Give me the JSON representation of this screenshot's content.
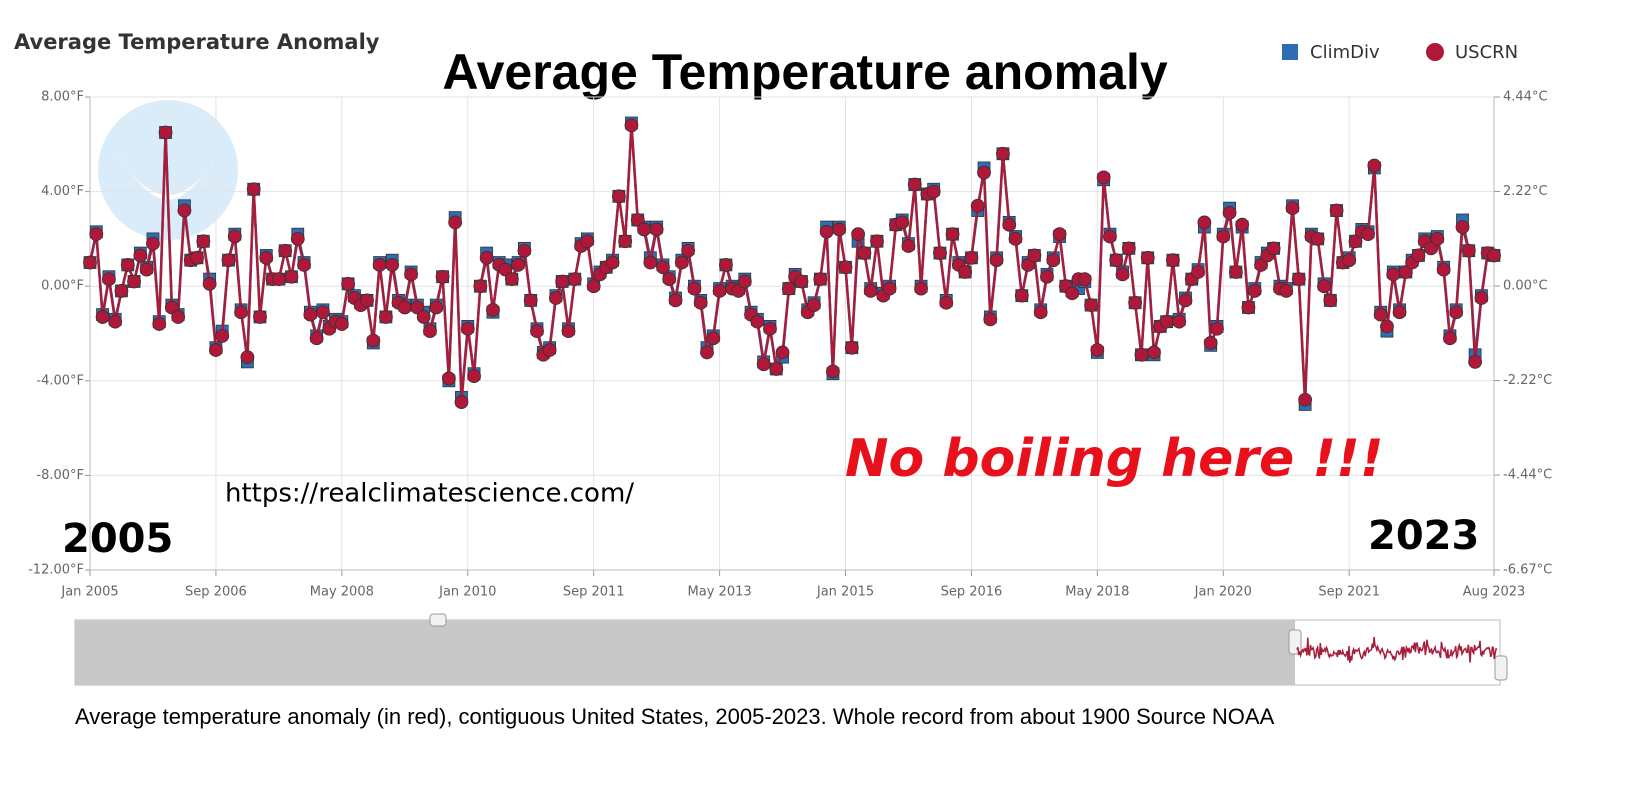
{
  "chart_data": {
    "type": "line",
    "title": "Average Temperature Anomaly",
    "annotations": {
      "headline": "Average Temperature anomaly",
      "comment": "No boiling here !!!",
      "url": "https://realclimatescience.com/",
      "start_year": "2005",
      "end_year": "2023",
      "caption": "Average temperature anomaly (in red), contiguous United States, 2005-2023.  Whole record from about 1900 Source NOAA"
    },
    "legend": "upper right",
    "grid": true,
    "xlim": [
      "2005-01",
      "2023-08"
    ],
    "xticks": [
      {
        "value": "2005-01",
        "label": "Jan 2005"
      },
      {
        "value": "2006-09",
        "label": "Sep 2006"
      },
      {
        "value": "2008-05",
        "label": "May 2008"
      },
      {
        "value": "2010-01",
        "label": "Jan 2010"
      },
      {
        "value": "2011-09",
        "label": "Sep 2011"
      },
      {
        "value": "2013-05",
        "label": "May 2013"
      },
      {
        "value": "2015-01",
        "label": "Jan 2015"
      },
      {
        "value": "2016-09",
        "label": "Sep 2016"
      },
      {
        "value": "2018-05",
        "label": "May 2018"
      },
      {
        "value": "2020-01",
        "label": "Jan 2020"
      },
      {
        "value": "2021-09",
        "label": "Sep 2021"
      },
      {
        "value": "2023-08",
        "label": "Aug 2023"
      }
    ],
    "ylim": [
      -12,
      8
    ],
    "yticks": [
      {
        "value": -12,
        "label": "-12.00°F"
      },
      {
        "value": -8,
        "label": "-8.00°F"
      },
      {
        "value": -4,
        "label": "-4.00°F"
      },
      {
        "value": 0,
        "label": "0.00°F"
      },
      {
        "value": 4,
        "label": "4.00°F"
      },
      {
        "value": 8,
        "label": "8.00°F"
      }
    ],
    "y2lim": [
      -6.67,
      4.44
    ],
    "y2ticks": [
      {
        "value": -6.67,
        "label": "-6.67°C"
      },
      {
        "value": -4.44,
        "label": "-4.44°C"
      },
      {
        "value": -2.22,
        "label": "-2.22°C"
      },
      {
        "value": 0,
        "label": "0.00°C"
      },
      {
        "value": 2.22,
        "label": "2.22°C"
      },
      {
        "value": 4.44,
        "label": "4.44°C"
      }
    ],
    "x": [
      "2005-01",
      "2005-02",
      "2005-03",
      "2005-04",
      "2005-05",
      "2005-06",
      "2005-07",
      "2005-08",
      "2005-09",
      "2005-10",
      "2005-11",
      "2005-12",
      "2006-01",
      "2006-02",
      "2006-03",
      "2006-04",
      "2006-05",
      "2006-06",
      "2006-07",
      "2006-08",
      "2006-09",
      "2006-10",
      "2006-11",
      "2006-12",
      "2007-01",
      "2007-02",
      "2007-03",
      "2007-04",
      "2007-05",
      "2007-06",
      "2007-07",
      "2007-08",
      "2007-09",
      "2007-10",
      "2007-11",
      "2007-12",
      "2008-01",
      "2008-02",
      "2008-03",
      "2008-04",
      "2008-05",
      "2008-06",
      "2008-07",
      "2008-08",
      "2008-09",
      "2008-10",
      "2008-11",
      "2008-12",
      "2009-01",
      "2009-02",
      "2009-03",
      "2009-04",
      "2009-05",
      "2009-06",
      "2009-07",
      "2009-08",
      "2009-09",
      "2009-10",
      "2009-11",
      "2009-12",
      "2010-01",
      "2010-02",
      "2010-03",
      "2010-04",
      "2010-05",
      "2010-06",
      "2010-07",
      "2010-08",
      "2010-09",
      "2010-10",
      "2010-11",
      "2010-12",
      "2011-01",
      "2011-02",
      "2011-03",
      "2011-04",
      "2011-05",
      "2011-06",
      "2011-07",
      "2011-08",
      "2011-09",
      "2011-10",
      "2011-11",
      "2011-12",
      "2012-01",
      "2012-02",
      "2012-03",
      "2012-04",
      "2012-05",
      "2012-06",
      "2012-07",
      "2012-08",
      "2012-09",
      "2012-10",
      "2012-11",
      "2012-12",
      "2013-01",
      "2013-02",
      "2013-03",
      "2013-04",
      "2013-05",
      "2013-06",
      "2013-07",
      "2013-08",
      "2013-09",
      "2013-10",
      "2013-11",
      "2013-12",
      "2014-01",
      "2014-02",
      "2014-03",
      "2014-04",
      "2014-05",
      "2014-06",
      "2014-07",
      "2014-08",
      "2014-09",
      "2014-10",
      "2014-11",
      "2014-12",
      "2015-01",
      "2015-02",
      "2015-03",
      "2015-04",
      "2015-05",
      "2015-06",
      "2015-07",
      "2015-08",
      "2015-09",
      "2015-10",
      "2015-11",
      "2015-12",
      "2016-01",
      "2016-02",
      "2016-03",
      "2016-04",
      "2016-05",
      "2016-06",
      "2016-07",
      "2016-08",
      "2016-09",
      "2016-10",
      "2016-11",
      "2016-12",
      "2017-01",
      "2017-02",
      "2017-03",
      "2017-04",
      "2017-05",
      "2017-06",
      "2017-07",
      "2017-08",
      "2017-09",
      "2017-10",
      "2017-11",
      "2017-12",
      "2018-01",
      "2018-02",
      "2018-03",
      "2018-04",
      "2018-05",
      "2018-06",
      "2018-07",
      "2018-08",
      "2018-09",
      "2018-10",
      "2018-11",
      "2018-12",
      "2019-01",
      "2019-02",
      "2019-03",
      "2019-04",
      "2019-05",
      "2019-06",
      "2019-07",
      "2019-08",
      "2019-09",
      "2019-10",
      "2019-11",
      "2019-12",
      "2020-01",
      "2020-02",
      "2020-03",
      "2020-04",
      "2020-05",
      "2020-06",
      "2020-07",
      "2020-08",
      "2020-09",
      "2020-10",
      "2020-11",
      "2020-12",
      "2021-01",
      "2021-02",
      "2021-03",
      "2021-04",
      "2021-05",
      "2021-06",
      "2021-07",
      "2021-08",
      "2021-09",
      "2021-10",
      "2021-11",
      "2021-12",
      "2022-01",
      "2022-02",
      "2022-03",
      "2022-04",
      "2022-05",
      "2022-06",
      "2022-07",
      "2022-08",
      "2022-09",
      "2022-10",
      "2022-11",
      "2022-12",
      "2023-01",
      "2023-02",
      "2023-03",
      "2023-04",
      "2023-05",
      "2023-06",
      "2023-07",
      "2023-08"
    ],
    "series": [
      {
        "name": "ClimDiv",
        "color": "#2e6db4",
        "line_color": "#3a5f8f",
        "marker": "square",
        "values": [
          1.0,
          2.3,
          -1.2,
          0.4,
          -1.4,
          -0.2,
          0.9,
          0.2,
          1.4,
          0.8,
          2.0,
          -1.5,
          6.5,
          -0.8,
          -1.2,
          3.4,
          1.1,
          1.2,
          1.9,
          0.3,
          -2.6,
          -1.9,
          1.1,
          2.2,
          -1.0,
          -3.2,
          4.1,
          -1.3,
          1.3,
          0.3,
          0.3,
          1.5,
          0.4,
          2.2,
          1.0,
          -1.1,
          -2.1,
          -1.0,
          -1.7,
          -1.4,
          -1.5,
          0.1,
          -0.4,
          -0.7,
          -0.6,
          -2.4,
          1.0,
          -1.3,
          1.1,
          -0.6,
          -0.8,
          0.6,
          -0.8,
          -1.1,
          -1.8,
          -0.8,
          0.4,
          -4.0,
          2.9,
          -4.7,
          -1.7,
          -3.7,
          0.0,
          1.4,
          -1.1,
          1.0,
          0.9,
          0.3,
          1.0,
          1.6,
          -0.6,
          -1.8,
          -2.8,
          -2.6,
          -0.4,
          0.2,
          -1.8,
          0.3,
          1.8,
          2.0,
          0.1,
          0.6,
          0.8,
          1.1,
          3.8,
          1.9,
          6.9,
          2.8,
          2.5,
          1.2,
          2.5,
          0.9,
          0.4,
          -0.5,
          1.1,
          1.6,
          0.0,
          -0.6,
          -2.6,
          -2.1,
          -0.1,
          0.9,
          0.0,
          -0.1,
          0.3,
          -1.1,
          -1.4,
          -3.2,
          -1.7,
          -3.5,
          -3.0,
          -0.1,
          0.5,
          0.2,
          -1.0,
          -0.7,
          0.3,
          2.5,
          -3.7,
          2.5,
          0.8,
          -2.6,
          1.9,
          1.4,
          -0.1,
          1.9,
          -0.3,
          0.0,
          2.6,
          2.8,
          1.8,
          4.3,
          0.0,
          3.9,
          4.1,
          1.4,
          -0.6,
          2.2,
          1.0,
          0.6,
          1.2,
          3.2,
          5.0,
          -1.3,
          1.2,
          5.6,
          2.7,
          2.1,
          -0.4,
          1.0,
          1.3,
          -1.0,
          0.5,
          1.2,
          2.1,
          0.0,
          -0.2,
          -0.1,
          0.2,
          -0.8,
          -2.8,
          4.5,
          2.2,
          1.1,
          0.6,
          1.6,
          -0.7,
          -2.9,
          1.2,
          -2.9,
          -1.7,
          -1.5,
          1.1,
          -1.4,
          -0.5,
          0.3,
          0.7,
          2.5,
          -2.5,
          -1.7,
          2.2,
          3.3,
          0.6,
          2.5,
          -0.9,
          -0.1,
          1.0,
          1.4,
          1.6,
          0.0,
          -0.1,
          3.4,
          0.3,
          -5.0,
          2.2,
          2.0,
          0.1,
          -0.6,
          3.2,
          1.0,
          1.2,
          1.9,
          2.4,
          2.3,
          5.0,
          -1.1,
          -1.9,
          0.6,
          -1.0,
          0.6,
          1.1,
          1.3,
          2.0,
          1.7,
          2.1,
          0.8,
          -2.1,
          -1.0,
          2.8,
          1.5,
          -2.9,
          -0.4,
          1.4,
          1.3
        ]
      },
      {
        "name": "USCRN",
        "color": "#b0183a",
        "line_color": "#a61e3c",
        "marker": "circle",
        "values": [
          1.0,
          2.2,
          -1.3,
          0.3,
          -1.5,
          -0.2,
          0.9,
          0.2,
          1.3,
          0.7,
          1.8,
          -1.6,
          6.5,
          -0.9,
          -1.3,
          3.2,
          1.1,
          1.2,
          1.9,
          0.1,
          -2.7,
          -2.1,
          1.1,
          2.1,
          -1.1,
          -3.0,
          4.1,
          -1.3,
          1.2,
          0.3,
          0.3,
          1.5,
          0.4,
          2.0,
          0.9,
          -1.2,
          -2.2,
          -1.1,
          -1.8,
          -1.5,
          -1.6,
          0.1,
          -0.5,
          -0.8,
          -0.6,
          -2.3,
          0.9,
          -1.3,
          0.9,
          -0.7,
          -0.9,
          0.5,
          -0.9,
          -1.3,
          -1.9,
          -0.9,
          0.4,
          -3.9,
          2.7,
          -4.9,
          -1.8,
          -3.8,
          0.0,
          1.2,
          -1.0,
          0.9,
          0.7,
          0.3,
          0.9,
          1.5,
          -0.6,
          -1.9,
          -2.9,
          -2.7,
          -0.5,
          0.2,
          -1.9,
          0.3,
          1.7,
          1.9,
          0.0,
          0.5,
          0.8,
          1.0,
          3.8,
          1.9,
          6.8,
          2.8,
          2.4,
          1.0,
          2.4,
          0.8,
          0.3,
          -0.6,
          1.0,
          1.5,
          -0.1,
          -0.7,
          -2.8,
          -2.2,
          -0.2,
          0.9,
          -0.1,
          -0.2,
          0.2,
          -1.2,
          -1.5,
          -3.3,
          -1.8,
          -3.5,
          -2.8,
          -0.1,
          0.4,
          0.2,
          -1.1,
          -0.8,
          0.3,
          2.3,
          -3.6,
          2.4,
          0.8,
          -2.6,
          2.2,
          1.4,
          -0.2,
          1.9,
          -0.4,
          -0.1,
          2.6,
          2.7,
          1.7,
          4.3,
          -0.1,
          3.9,
          4.0,
          1.4,
          -0.7,
          2.2,
          0.9,
          0.6,
          1.2,
          3.4,
          4.8,
          -1.4,
          1.1,
          5.6,
          2.6,
          2.0,
          -0.4,
          0.9,
          1.3,
          -1.1,
          0.4,
          1.1,
          2.2,
          0.0,
          -0.3,
          0.3,
          0.3,
          -0.8,
          -2.7,
          4.6,
          2.1,
          1.1,
          0.5,
          1.6,
          -0.7,
          -2.9,
          1.2,
          -2.8,
          -1.7,
          -1.5,
          1.1,
          -1.5,
          -0.6,
          0.3,
          0.6,
          2.7,
          -2.4,
          -1.8,
          2.1,
          3.1,
          0.6,
          2.6,
          -0.9,
          -0.2,
          0.9,
          1.3,
          1.6,
          -0.1,
          -0.2,
          3.3,
          0.3,
          -4.8,
          2.1,
          2.0,
          0.0,
          -0.6,
          3.2,
          1.0,
          1.1,
          1.9,
          2.3,
          2.2,
          5.1,
          -1.2,
          -1.7,
          0.5,
          -1.1,
          0.6,
          1.0,
          1.3,
          1.9,
          1.6,
          2.0,
          0.7,
          -2.2,
          -1.1,
          2.5,
          1.5,
          -3.2,
          -0.5,
          1.4,
          1.3
        ]
      }
    ]
  }
}
